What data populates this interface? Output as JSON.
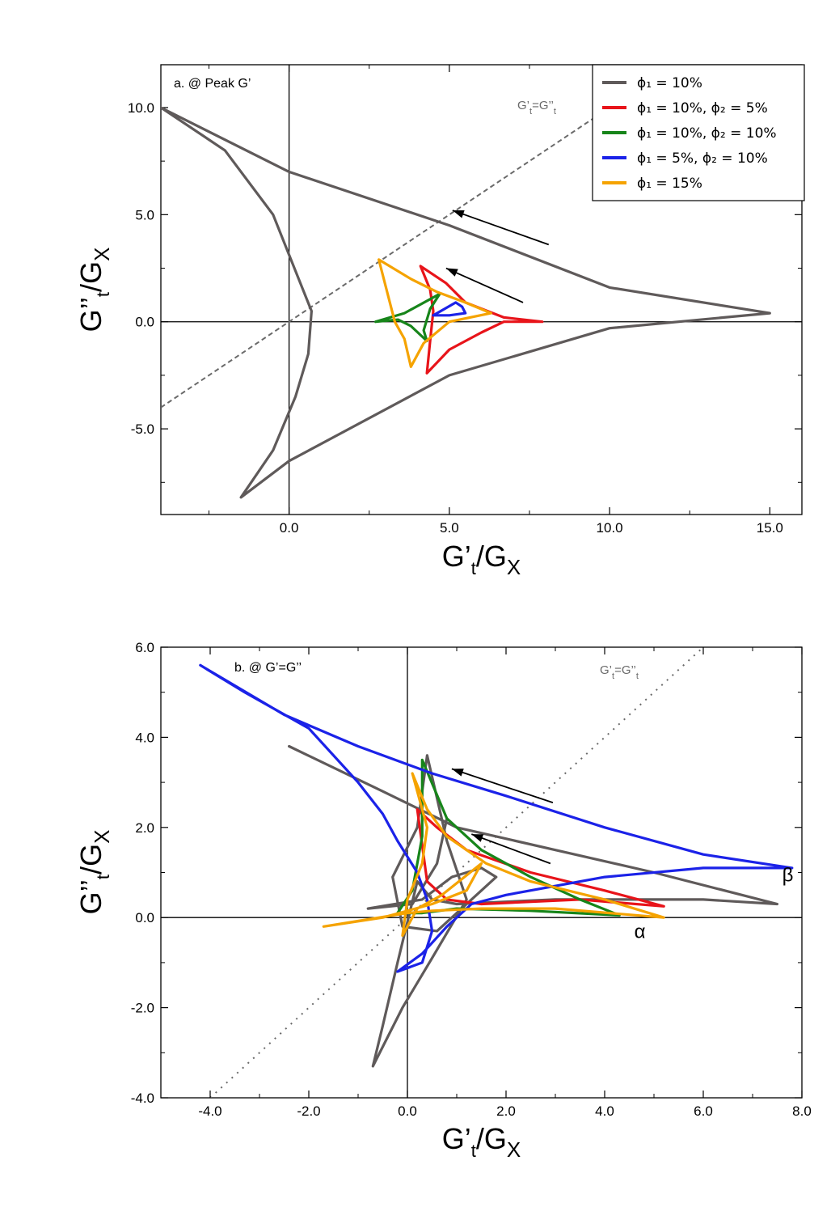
{
  "colors": {
    "gray": "#5f5a5a",
    "red": "#e8141a",
    "green": "#17851a",
    "blue": "#1b22e8",
    "orange": "#f5a300",
    "diag": "#6a6a6a"
  },
  "chart_data": [
    {
      "type": "line",
      "panel_label": "a. @ Peak G’",
      "xlabel": {
        "main": "G’",
        "sub": "t",
        "rest": "/G",
        "sub2": "X"
      },
      "ylabel": {
        "main": "G’’",
        "sub": "t",
        "rest": "/G",
        "sub2": "X"
      },
      "xlim": [
        -4,
        16
      ],
      "ylim": [
        -9,
        12
      ],
      "xticks": [
        0,
        5,
        10,
        15
      ],
      "xtick_labels": [
        "0.0",
        "5.0",
        "10.0",
        "15.0"
      ],
      "yticks": [
        -5,
        0,
        5,
        10
      ],
      "ytick_labels": [
        "-5.0",
        "0.0",
        "5.0",
        "10.0"
      ],
      "diagonal_label": {
        "main": "G’",
        "sub": "t",
        "eq": "=G’’",
        "sub2": "t"
      },
      "legend": {
        "position": "top-right",
        "entries": [
          {
            "name": "ϕ₁ = 10%",
            "color": "#5f5a5a"
          },
          {
            "name": "ϕ₁ = 10%, ϕ₂ = 5%",
            "color": "#e8141a"
          },
          {
            "name": "ϕ₁ = 10%, ϕ₂ = 10%",
            "color": "#17851a"
          },
          {
            "name": "ϕ₁ = 5%, ϕ₂ = 10%",
            "color": "#1b22e8"
          },
          {
            "name": "ϕ₁ = 15%",
            "color": "#f5a300"
          }
        ]
      },
      "series": [
        {
          "color": "#5f5a5a",
          "points": [
            [
              15,
              0.4
            ],
            [
              10,
              1.6
            ],
            [
              5,
              4.5
            ],
            [
              0,
              7
            ],
            [
              -4,
              10
            ],
            [
              -2,
              8
            ],
            [
              -0.5,
              5
            ],
            [
              0.3,
              2
            ],
            [
              0.7,
              0.5
            ],
            [
              0.6,
              -1.5
            ],
            [
              0.2,
              -3.5
            ],
            [
              -0.5,
              -6
            ],
            [
              -1.5,
              -8.2
            ],
            [
              0,
              -6.5
            ],
            [
              5,
              -2.5
            ],
            [
              10,
              -0.3
            ],
            [
              15,
              0.4
            ]
          ]
        },
        {
          "color": "#e8141a",
          "points": [
            [
              7.9,
              0
            ],
            [
              6.7,
              0.2
            ],
            [
              5.5,
              0.9
            ],
            [
              4.9,
              1.8
            ],
            [
              4.1,
              2.6
            ],
            [
              4.4,
              1.5
            ],
            [
              4.5,
              0.5
            ],
            [
              4.4,
              -0.9
            ],
            [
              4.3,
              -2.4
            ],
            [
              5,
              -1.3
            ],
            [
              6,
              -0.5
            ],
            [
              6.7,
              0
            ],
            [
              7.9,
              0
            ]
          ]
        },
        {
          "color": "#17851a",
          "points": [
            [
              2.7,
              0
            ],
            [
              3.6,
              0.4
            ],
            [
              4.7,
              1.3
            ],
            [
              4.4,
              0.6
            ],
            [
              4.2,
              -0.4
            ],
            [
              4.3,
              -0.9
            ],
            [
              3.8,
              -0.2
            ],
            [
              3.4,
              0.1
            ],
            [
              2.7,
              0
            ]
          ]
        },
        {
          "color": "#1b22e8",
          "points": [
            [
              4.5,
              0.3
            ],
            [
              5.2,
              0.9
            ],
            [
              5.4,
              0.7
            ],
            [
              5.5,
              0.4
            ],
            [
              5.0,
              0.3
            ],
            [
              4.5,
              0.3
            ]
          ]
        },
        {
          "color": "#f5a300",
          "points": [
            [
              2.8,
              2.9
            ],
            [
              3.8,
              2
            ],
            [
              4.6,
              1.4
            ],
            [
              5.5,
              0.9
            ],
            [
              6.3,
              0.4
            ],
            [
              5,
              0
            ],
            [
              4.2,
              -1
            ],
            [
              3.8,
              -2.1
            ],
            [
              3.6,
              -0.8
            ],
            [
              3.3,
              0
            ],
            [
              2.8,
              2.9
            ]
          ]
        }
      ],
      "arrows": [
        {
          "from": [
            8.1,
            3.6
          ],
          "to": [
            5.1,
            5.2
          ]
        },
        {
          "from": [
            7.3,
            0.9
          ],
          "to": [
            4.9,
            2.5
          ]
        }
      ]
    },
    {
      "type": "line",
      "panel_label": "b. @ G’=G’’",
      "xlabel": {
        "main": "G’",
        "sub": "t",
        "rest": "/G",
        "sub2": "X"
      },
      "ylabel": {
        "main": "G’’",
        "sub": "t",
        "rest": "/G",
        "sub2": "X"
      },
      "xlim": [
        -5,
        8
      ],
      "ylim": [
        -4,
        6
      ],
      "xticks": [
        -4,
        -2,
        0,
        2,
        4,
        6,
        8
      ],
      "xtick_labels": [
        "-4.0",
        "-2.0",
        "0.0",
        "2.0",
        "4.0",
        "6.0",
        "8.0"
      ],
      "yticks": [
        -4,
        -2,
        0,
        2,
        4,
        6
      ],
      "ytick_labels": [
        "-4.0",
        "-2.0",
        "0.0",
        "2.0",
        "4.0",
        "6.0"
      ],
      "diagonal_label": {
        "main": "G’",
        "sub": "t",
        "eq": "=G’’",
        "sub2": "t"
      },
      "annotations": [
        {
          "text": "β",
          "at": [
            7.6,
            0.8
          ]
        },
        {
          "text": "α",
          "at": [
            4.6,
            -0.45
          ]
        }
      ],
      "series": [
        {
          "color": "#5f5a5a",
          "points": [
            [
              -2.4,
              3.8
            ],
            [
              -0.5,
              2.8
            ],
            [
              1,
              2
            ],
            [
              3,
              1.5
            ],
            [
              5,
              1
            ],
            [
              7.5,
              0.3
            ],
            [
              6,
              0.4
            ],
            [
              3,
              0.4
            ],
            [
              1,
              0.3
            ],
            [
              0.5,
              0.4
            ],
            [
              0.2,
              0.8
            ],
            [
              -0.2,
              -1
            ],
            [
              -0.5,
              -2.4
            ],
            [
              -0.7,
              -3.3
            ],
            [
              -0.1,
              -2
            ],
            [
              0.5,
              -0.9
            ],
            [
              1.2,
              0.4
            ],
            [
              0.8,
              1.7
            ],
            [
              0.4,
              3.6
            ],
            [
              0.2,
              2
            ],
            [
              -0.3,
              0.9
            ],
            [
              -0.1,
              -0.2
            ],
            [
              0.6,
              -0.3
            ],
            [
              1.8,
              0.9
            ],
            [
              1.5,
              1.1
            ],
            [
              0.9,
              0.9
            ],
            [
              0.3,
              0.4
            ],
            [
              -0.8,
              0.2
            ],
            [
              0.1,
              0.3
            ],
            [
              0.6,
              1.2
            ],
            [
              0.8,
              2.2
            ]
          ]
        },
        {
          "color": "#e8141a",
          "points": [
            [
              5.2,
              0.25
            ],
            [
              3.5,
              0.4
            ],
            [
              1.5,
              0.3
            ],
            [
              0.8,
              0.4
            ],
            [
              0.4,
              0.8
            ],
            [
              0.3,
              1.6
            ],
            [
              0.2,
              2.4
            ],
            [
              0.6,
              2
            ],
            [
              1.2,
              1.5
            ],
            [
              2.5,
              1
            ],
            [
              4,
              0.6
            ],
            [
              5.2,
              0.25
            ]
          ]
        },
        {
          "color": "#17851a",
          "points": [
            [
              4.3,
              0.05
            ],
            [
              2.5,
              0.15
            ],
            [
              1,
              0.2
            ],
            [
              0.3,
              0.1
            ],
            [
              -0.2,
              0.1
            ],
            [
              0.1,
              0.6
            ],
            [
              0.3,
              1.8
            ],
            [
              0.3,
              3.5
            ],
            [
              0.8,
              2.2
            ],
            [
              1.5,
              1.5
            ],
            [
              2.5,
              0.9
            ],
            [
              3.5,
              0.4
            ],
            [
              4.3,
              0.05
            ]
          ]
        },
        {
          "color": "#1b22e8",
          "points": [
            [
              -4.2,
              5.6
            ],
            [
              -2.5,
              4.5
            ],
            [
              -1,
              3.8
            ],
            [
              0.5,
              3.2
            ],
            [
              2,
              2.7
            ],
            [
              4,
              2
            ],
            [
              6,
              1.4
            ],
            [
              7.8,
              1.1
            ],
            [
              6,
              1.1
            ],
            [
              4,
              0.9
            ],
            [
              2,
              0.5
            ],
            [
              1.3,
              0.3
            ],
            [
              0.8,
              -0.2
            ],
            [
              0.3,
              -0.8
            ],
            [
              -0.2,
              -1.2
            ],
            [
              0.3,
              -1
            ],
            [
              0.5,
              -0.3
            ],
            [
              0.4,
              0.4
            ],
            [
              0.2,
              1
            ],
            [
              -0.2,
              1.7
            ],
            [
              -0.5,
              2.3
            ],
            [
              -1,
              3
            ],
            [
              -2,
              4.2
            ],
            [
              -3.3,
              5
            ],
            [
              -4.2,
              5.6
            ]
          ]
        },
        {
          "color": "#f5a300",
          "points": [
            [
              -1.7,
              -0.2
            ],
            [
              -0.5,
              0
            ],
            [
              0.5,
              0.3
            ],
            [
              1.2,
              0.6
            ],
            [
              1.5,
              1.2
            ],
            [
              0.7,
              0.5
            ],
            [
              0.2,
              0.2
            ],
            [
              -0.1,
              -0.4
            ],
            [
              0,
              0.4
            ],
            [
              0.3,
              1.2
            ],
            [
              0.4,
              2
            ],
            [
              0.1,
              3.2
            ],
            [
              0.4,
              2.4
            ],
            [
              0.8,
              1.8
            ],
            [
              1.6,
              1.2
            ],
            [
              2.5,
              0.8
            ],
            [
              4,
              0.4
            ],
            [
              5.2,
              0
            ],
            [
              3,
              0.2
            ],
            [
              1.5,
              0.2
            ],
            [
              0.5,
              0.15
            ],
            [
              0,
              0.1
            ],
            [
              -1.7,
              -0.2
            ]
          ]
        }
      ],
      "arrows": [
        {
          "from": [
            2.95,
            2.55
          ],
          "to": [
            0.9,
            3.3
          ]
        },
        {
          "from": [
            2.9,
            1.2
          ],
          "to": [
            1.3,
            1.85
          ]
        }
      ]
    }
  ]
}
